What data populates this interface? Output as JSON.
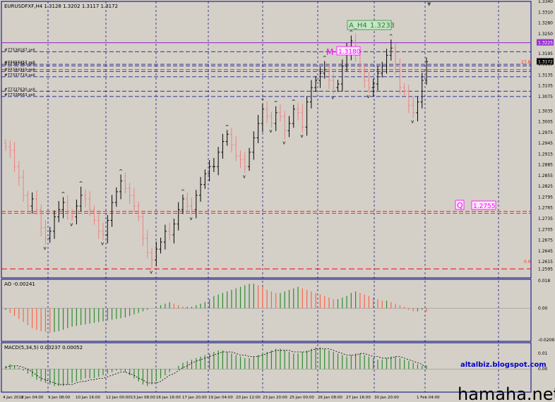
{
  "window": {
    "symbol_header": "EURUSDFXF,H4  1.3128 1.3202 1.3117 1.3172"
  },
  "chart_data": [
    {
      "type": "candlestick",
      "title": "EURUSDFXF,H4",
      "ohlc_header": [
        "1.3128",
        "1.3202",
        "1.3117",
        "1.3172"
      ],
      "ylim": [
        1.257,
        1.334
      ],
      "y_ticks": [
        "1.3340",
        "1.3310",
        "1.3280",
        "1.3250",
        "1.3225",
        "1.3195",
        "1.3172",
        "1.3165",
        "1.3135",
        "1.3105",
        "1.3075",
        "1.3035",
        "1.3005",
        "1.2975",
        "1.2945",
        "1.2915",
        "1.2885",
        "1.2855",
        "1.2825",
        "1.2795",
        "1.2765",
        "1.2735",
        "1.2705",
        "1.2675",
        "1.2645",
        "1.2615",
        "1.2595"
      ],
      "current_price": "1.3172",
      "upper_box_price": "1.3225",
      "x_ticks": [
        "4 Jan 2012",
        "6 Jan 04:00",
        "9 Jan 08:00",
        "10 Jan 16:00",
        "12 Jan 00:00",
        "13 Jan 08:00",
        "16 Jan 16:00",
        "17 Jan 20:00",
        "19 Jan 04:00",
        "20 Jan 12:00",
        "23 Jan 20:00",
        "25 Jan 00:00",
        "26 Jan 08:00",
        "27 Jan 16:00",
        "30 Jan 20:00",
        "1 Feb 04:00"
      ],
      "order_labels": [
        "#77538187 sell",
        "#77497457 sell",
        "#77307963 sell",
        "#77333315 sell",
        "#77337719 sell",
        "#77337630 sell",
        "#77338663 sell"
      ],
      "order_levels": [
        1.32,
        1.3165,
        1.316,
        1.3145,
        1.313,
        1.309,
        1.3075
      ],
      "annotations": {
        "ah4_label": "A_H4",
        "ah4_value": "1.3233",
        "m_label": "M",
        "m_value": "1.3180",
        "q_label": "Q",
        "q_value": "1.2755",
        "fib_upper": "27.8",
        "fib_lower": "0.0"
      },
      "close_series": [
        1.2935,
        1.2925,
        1.288,
        1.285,
        1.28,
        1.277,
        1.279,
        1.276,
        1.271,
        1.268,
        1.27,
        1.274,
        1.276,
        1.278,
        1.275,
        1.274,
        1.277,
        1.28,
        1.279,
        1.276,
        1.273,
        1.27,
        1.269,
        1.273,
        1.278,
        1.281,
        1.284,
        1.282,
        1.28,
        1.277,
        1.274,
        1.268,
        1.264,
        1.262,
        1.265,
        1.267,
        1.27,
        1.269,
        1.272,
        1.276,
        1.279,
        1.277,
        1.276,
        1.28,
        1.283,
        1.286,
        1.288,
        1.288,
        1.292,
        1.295,
        1.297,
        1.294,
        1.291,
        1.29,
        1.288,
        1.292,
        1.296,
        1.3,
        1.304,
        1.302,
        1.3,
        1.303,
        1.302,
        1.298,
        1.3,
        1.304,
        1.303,
        1.299,
        1.306,
        1.31,
        1.312,
        1.314,
        1.315,
        1.312,
        1.31,
        1.311,
        1.316,
        1.32,
        1.323,
        1.319,
        1.315,
        1.312,
        1.31,
        1.311,
        1.314,
        1.316,
        1.319,
        1.321,
        1.316,
        1.31,
        1.309,
        1.305,
        1.303,
        1.306,
        1.312,
        1.3172
      ]
    },
    {
      "type": "histogram",
      "title": "AO -0.00241",
      "y_ticks": [
        "0.018",
        "0.00",
        "-0.02067"
      ],
      "ylim": [
        -0.02067,
        0.018
      ],
      "values": [
        -0.001,
        -0.003,
        -0.005,
        -0.007,
        -0.009,
        -0.011,
        -0.013,
        -0.014,
        -0.015,
        -0.0155,
        -0.016,
        -0.0155,
        -0.015,
        -0.014,
        -0.013,
        -0.012,
        -0.0115,
        -0.011,
        -0.0105,
        -0.01,
        -0.0095,
        -0.009,
        -0.0085,
        -0.008,
        -0.0075,
        -0.007,
        -0.0065,
        -0.006,
        -0.005,
        -0.004,
        -0.003,
        -0.002,
        -0.001,
        0.0,
        0.001,
        0.002,
        0.003,
        0.004,
        0.003,
        0.002,
        0.001,
        0.001,
        0.001,
        0.002,
        0.003,
        0.004,
        0.006,
        0.008,
        0.009,
        0.01,
        0.011,
        0.012,
        0.013,
        0.014,
        0.015,
        0.016,
        0.016,
        0.015,
        0.014,
        0.012,
        0.011,
        0.01,
        0.01,
        0.011,
        0.012,
        0.013,
        0.014,
        0.013,
        0.012,
        0.011,
        0.01,
        0.009,
        0.008,
        0.007,
        0.006,
        0.006,
        0.007,
        0.008,
        0.01,
        0.011,
        0.01,
        0.009,
        0.008,
        0.007,
        0.006,
        0.005,
        0.005,
        0.004,
        0.003,
        0.002,
        0.001,
        -0.001,
        -0.002,
        -0.002,
        -0.001,
        -0.00241
      ]
    },
    {
      "type": "histogram+line",
      "title": "MACD(5,34,5) 0.00237 0.00052",
      "y_ticks": [
        "0.01",
        "0.00"
      ],
      "ylim": [
        -0.014,
        0.016
      ],
      "values": [
        0.002,
        0.003,
        0.002,
        0.001,
        -0.001,
        -0.003,
        -0.005,
        -0.007,
        -0.008,
        -0.009,
        -0.01,
        -0.011,
        -0.011,
        -0.011,
        -0.01,
        -0.009,
        -0.008,
        -0.007,
        -0.006,
        -0.006,
        -0.006,
        -0.005,
        -0.004,
        -0.003,
        -0.002,
        -0.001,
        -0.001,
        -0.002,
        -0.004,
        -0.006,
        -0.008,
        -0.01,
        -0.011,
        -0.01,
        -0.008,
        -0.006,
        -0.004,
        -0.002,
        0.0,
        0.002,
        0.004,
        0.005,
        0.006,
        0.007,
        0.008,
        0.009,
        0.01,
        0.011,
        0.012,
        0.012,
        0.011,
        0.01,
        0.009,
        0.008,
        0.007,
        0.007,
        0.008,
        0.009,
        0.01,
        0.011,
        0.012,
        0.013,
        0.013,
        0.012,
        0.011,
        0.01,
        0.01,
        0.011,
        0.012,
        0.013,
        0.014,
        0.014,
        0.013,
        0.012,
        0.011,
        0.01,
        0.009,
        0.008,
        0.009,
        0.01,
        0.01,
        0.009,
        0.008,
        0.007,
        0.006,
        0.006,
        0.007,
        0.008,
        0.008,
        0.007,
        0.006,
        0.005,
        0.004,
        0.003,
        0.002,
        0.00237
      ],
      "signal": [
        0.001,
        0.002,
        0.002,
        0.002,
        0.001,
        0.0,
        -0.002,
        -0.004,
        -0.006,
        -0.007,
        -0.008,
        -0.009,
        -0.01,
        -0.01,
        -0.01,
        -0.01,
        -0.009,
        -0.008,
        -0.008,
        -0.007,
        -0.007,
        -0.006,
        -0.006,
        -0.005,
        -0.004,
        -0.003,
        -0.002,
        -0.002,
        -0.003,
        -0.004,
        -0.006,
        -0.007,
        -0.009,
        -0.009,
        -0.009,
        -0.008,
        -0.006,
        -0.004,
        -0.003,
        -0.001,
        0.001,
        0.002,
        0.004,
        0.005,
        0.006,
        0.007,
        0.008,
        0.009,
        0.01,
        0.011,
        0.011,
        0.011,
        0.01,
        0.009,
        0.009,
        0.008,
        0.008,
        0.008,
        0.009,
        0.01,
        0.011,
        0.012,
        0.012,
        0.012,
        0.012,
        0.011,
        0.011,
        0.011,
        0.011,
        0.012,
        0.013,
        0.013,
        0.013,
        0.013,
        0.012,
        0.011,
        0.01,
        0.009,
        0.009,
        0.009,
        0.01,
        0.01,
        0.009,
        0.008,
        0.008,
        0.007,
        0.007,
        0.007,
        0.008,
        0.008,
        0.007,
        0.006,
        0.005,
        0.004,
        0.003,
        0.00052
      ]
    }
  ],
  "watermark": {
    "blog": "altalbiz.blogspot.com",
    "site": "hamaha.net"
  },
  "colors": {
    "background": "#d4d0c8",
    "candle_up": "#000000",
    "candle_down": "#f08080",
    "grid_dash": "#00007f",
    "level_purple": "#9933cc",
    "level_red": "#ff0000",
    "ao_up": "#2e8b2e",
    "ao_down": "#ff6347",
    "macd_bar": "#2e8b2e",
    "magenta": "#ff00ff",
    "blog_blue": "#0000cc"
  }
}
